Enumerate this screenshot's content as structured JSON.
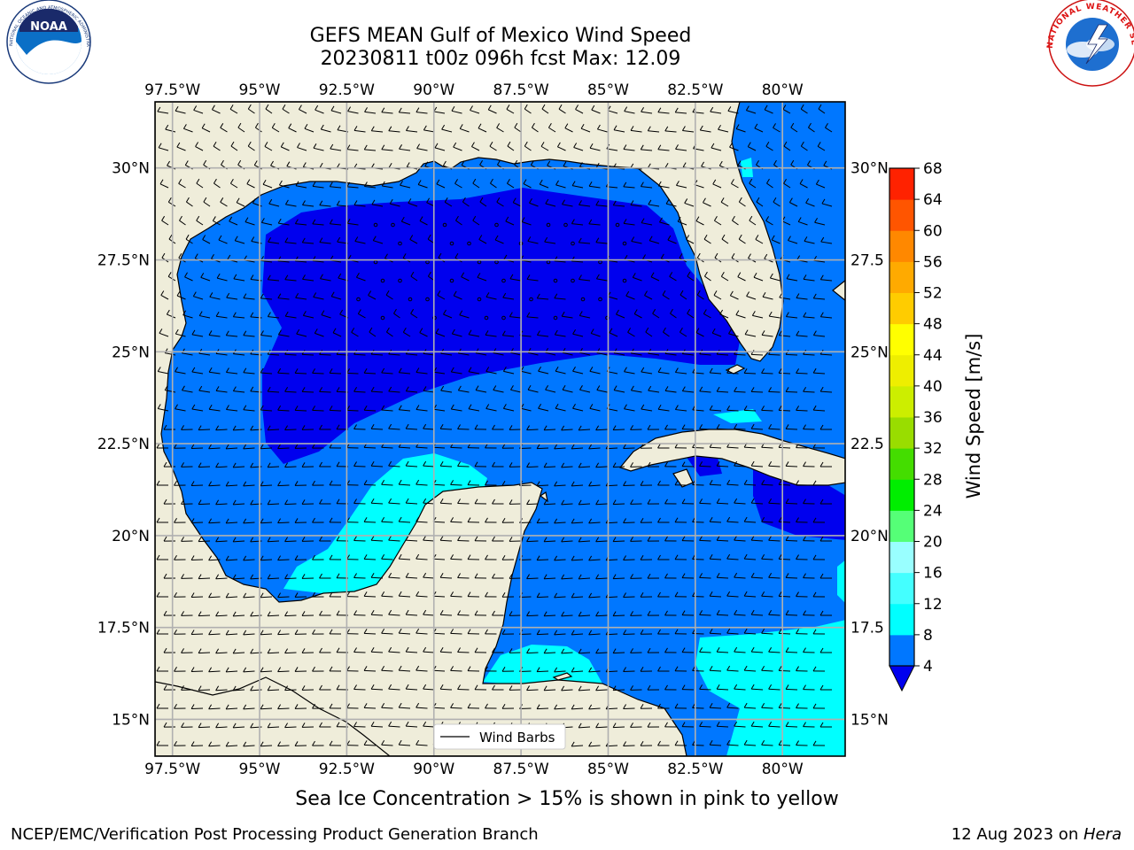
{
  "title": {
    "line1": "GEFS MEAN Gulf of Mexico Wind Speed",
    "line2": "20230811 t00z 096h fcst   Max: 12.09"
  },
  "logos": {
    "noaa_text": "NOAA",
    "noaa_ring": "NATIONAL OCEANIC AND ATMOSPHERIC ADMINISTRATION · U.S. DEPARTMENT OF COMMERCE",
    "nws_ring": "NATIONAL WEATHER SERVICE"
  },
  "axes": {
    "lon_ticks": [
      "97.5°W",
      "95°W",
      "92.5°W",
      "90°W",
      "87.5°W",
      "85°W",
      "82.5°W",
      "80°W"
    ],
    "lat_ticks": [
      "30°N",
      "27.5°N",
      "25°N",
      "22.5°N",
      "20°N",
      "17.5°N",
      "15°N"
    ],
    "lat_ticks_right": [
      "30°N",
      "27.5",
      "25°N",
      "22.5",
      "20°N",
      "17.5",
      "15°N"
    ],
    "lon_range": [
      -98.0,
      -78.2
    ],
    "lat_range": [
      14.0,
      31.8
    ]
  },
  "legend": {
    "label": "Wind Barbs"
  },
  "colorbar": {
    "label": "Wind Speed [m/s]",
    "ticks": [
      "68",
      "64",
      "60",
      "56",
      "52",
      "48",
      "44",
      "40",
      "36",
      "32",
      "28",
      "24",
      "20",
      "16",
      "12",
      "8",
      "4"
    ],
    "colors": [
      "#0000ee",
      "#0077ff",
      "#00ffff",
      "#44ffff",
      "#99ffff",
      "#55ff77",
      "#00ee00",
      "#44dd00",
      "#99dd00",
      "#ccee00",
      "#eeee00",
      "#ffff00",
      "#ffcc00",
      "#ffaa00",
      "#ff8800",
      "#ff5500",
      "#ff2200",
      "#ff0000"
    ],
    "under_color": "#0000ee",
    "extend": "min"
  },
  "colors": {
    "land": "#efedda",
    "coast": "#000000",
    "grid": "#b0b0b0",
    "speed_4_8": "#0077ff",
    "speed_under_4": "#0000ee",
    "speed_8_12": "#00ffff"
  },
  "footer": {
    "caption": "Sea Ice Concentration > 15% is shown in pink to yellow",
    "left": "NCEP/EMC/Verification Post Processing Product Generation Branch",
    "right_prefix": "12 Aug 2023 on ",
    "right_host": "Hera"
  }
}
